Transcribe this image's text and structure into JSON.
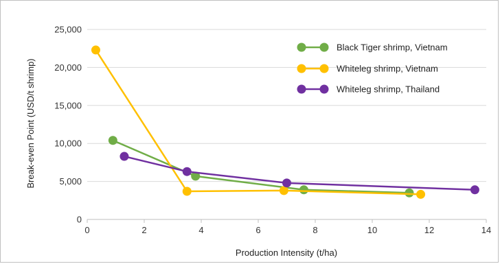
{
  "chart_data": {
    "type": "line",
    "xlabel": "Production Intensity (t/ha)",
    "ylabel": "Break-even Point (USD/t shrimp)",
    "xlim": [
      0,
      14
    ],
    "ylim": [
      0,
      25000
    ],
    "x_ticks": [
      "0",
      "2",
      "4",
      "6",
      "8",
      "10",
      "12",
      "14"
    ],
    "y_ticks": [
      "0",
      "5,000",
      "10,000",
      "15,000",
      "20,000",
      "25,000"
    ],
    "x_tick_values": [
      0,
      2,
      4,
      6,
      8,
      10,
      12,
      14
    ],
    "y_tick_values": [
      0,
      5000,
      10000,
      15000,
      20000,
      25000
    ],
    "grid": "horizontal",
    "legend_position": "top-right",
    "series": [
      {
        "name": "Black Tiger shrimp, Vietnam",
        "color": "#70ad47",
        "points": [
          [
            0.9,
            10400
          ],
          [
            3.8,
            5700
          ],
          [
            7.6,
            3900
          ],
          [
            11.3,
            3500
          ]
        ]
      },
      {
        "name": "Whiteleg shrimp, Vietnam",
        "color": "#ffc000",
        "points": [
          [
            0.3,
            22300
          ],
          [
            3.5,
            3700
          ],
          [
            6.9,
            3800
          ],
          [
            11.7,
            3300
          ]
        ]
      },
      {
        "name": "Whiteleg shrimp, Thailand",
        "color": "#7030a0",
        "points": [
          [
            1.3,
            8300
          ],
          [
            3.5,
            6300
          ],
          [
            7.0,
            4800
          ],
          [
            13.6,
            3900
          ]
        ]
      }
    ]
  }
}
